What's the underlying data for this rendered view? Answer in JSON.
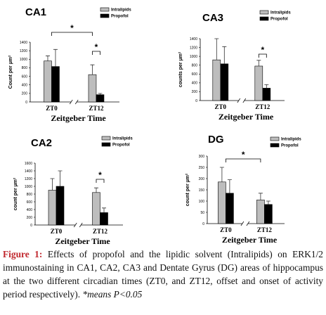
{
  "chart_data": [
    {
      "type": "bar",
      "title": "CA1",
      "categories": [
        "ZT0",
        "ZT12"
      ],
      "xlabel": "Zeitgeber Time",
      "ylabel": "Count per µm²",
      "series": [
        {
          "name": "Intralipids",
          "color": "#bdbdbd",
          "values": [
            960,
            640
          ],
          "errors": [
            120,
            230
          ]
        },
        {
          "name": "Propofol",
          "color": "#000000",
          "values": [
            830,
            170
          ],
          "errors": [
            400,
            30
          ]
        }
      ],
      "ylim": [
        0,
        1400
      ],
      "yticks": [
        0,
        200,
        400,
        600,
        800,
        1000,
        1200,
        1400
      ],
      "annotations": [
        "*",
        "*"
      ]
    },
    {
      "type": "bar",
      "title": "CA3",
      "categories": [
        "ZT0",
        "ZT12"
      ],
      "xlabel": "Zeitgeber Time",
      "ylabel": "counts per µm²",
      "series": [
        {
          "name": "Intralipids",
          "color": "#bdbdbd",
          "values": [
            920,
            780
          ],
          "errors": [
            480,
            130
          ]
        },
        {
          "name": "Propofol",
          "color": "#000000",
          "values": [
            830,
            280
          ],
          "errors": [
            390,
            80
          ]
        }
      ],
      "ylim": [
        0,
        1400
      ],
      "yticks": [
        0,
        200,
        400,
        600,
        800,
        1000,
        1200,
        1400
      ],
      "annotations": [
        "*"
      ]
    },
    {
      "type": "bar",
      "title": "CA2",
      "categories": [
        "ZT0",
        "ZT12"
      ],
      "xlabel": "Zeitgeber Time",
      "ylabel": "count per µm²",
      "series": [
        {
          "name": "Intralipids",
          "color": "#bdbdbd",
          "values": [
            900,
            840
          ],
          "errors": [
            300,
            120
          ]
        },
        {
          "name": "Propofol",
          "color": "#000000",
          "values": [
            1000,
            320
          ],
          "errors": [
            400,
            120
          ]
        }
      ],
      "ylim": [
        0,
        1600
      ],
      "yticks": [
        0,
        200,
        400,
        600,
        800,
        1000,
        1200,
        1400,
        1600
      ],
      "annotations": [
        "*"
      ]
    },
    {
      "type": "bar",
      "title": "DG",
      "categories": [
        "ZT0",
        "ZT12"
      ],
      "xlabel": "Zeitgeber Time",
      "ylabel": "count per µm²",
      "series": [
        {
          "name": "Intralipids",
          "color": "#bdbdbd",
          "values": [
            185,
            105
          ],
          "errors": [
            65,
            30
          ]
        },
        {
          "name": "Propofol",
          "color": "#000000",
          "values": [
            135,
            85
          ],
          "errors": [
            60,
            15
          ]
        }
      ],
      "ylim": [
        0,
        300
      ],
      "yticks": [
        0,
        50,
        100,
        150,
        200,
        250,
        300
      ],
      "annotations": [
        "*"
      ]
    }
  ],
  "caption": {
    "label": "Figure 1:",
    "text": " Effects of propofol and the lipidic solvent (Intralipids) on ERK1/2 immunostaining in CA1, CA2, CA3 and Dentate Gyrus (DG) areas of hippocampus at the two different circadian times (ZT0, and ZT12, offset and onset of activity period respectively). ",
    "note": "*means P<0.05"
  }
}
